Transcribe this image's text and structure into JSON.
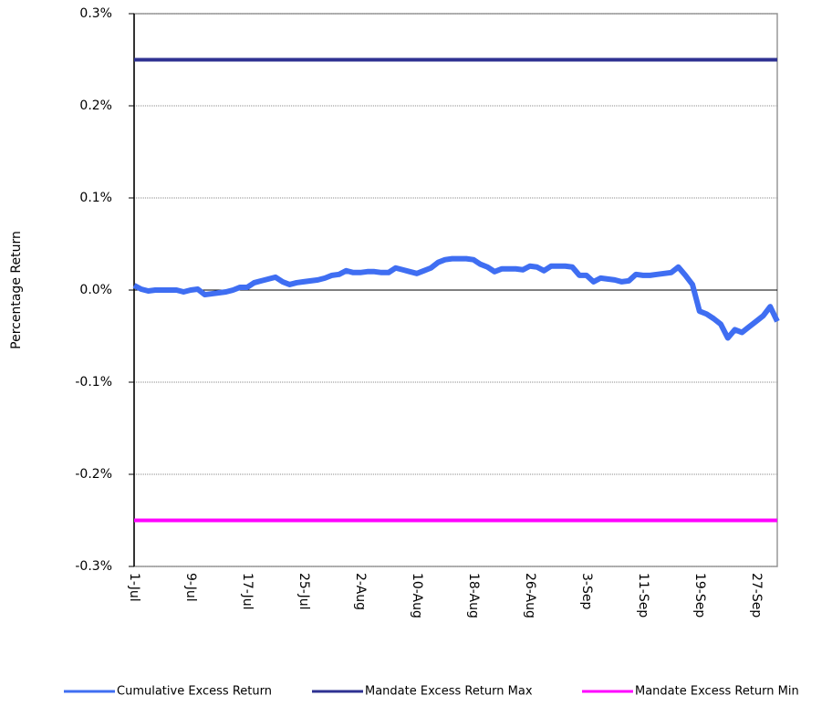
{
  "chart_data": {
    "type": "line",
    "y_label": "Percentage Return",
    "categories": [
      "1-Jul",
      null,
      null,
      null,
      null,
      null,
      null,
      null,
      "9-Jul",
      null,
      null,
      null,
      null,
      null,
      null,
      null,
      "17-Jul",
      null,
      null,
      null,
      null,
      null,
      null,
      null,
      "25-Jul",
      null,
      null,
      null,
      null,
      null,
      null,
      null,
      "2-Aug",
      null,
      null,
      null,
      null,
      null,
      null,
      null,
      "10-Aug",
      null,
      null,
      null,
      null,
      null,
      null,
      null,
      "18-Aug",
      null,
      null,
      null,
      null,
      null,
      null,
      null,
      "26-Aug",
      null,
      null,
      null,
      null,
      null,
      null,
      null,
      "3-Sep",
      null,
      null,
      null,
      null,
      null,
      null,
      null,
      "11-Sep",
      null,
      null,
      null,
      null,
      null,
      null,
      null,
      "19-Sep",
      null,
      null,
      null,
      null,
      null,
      null,
      null,
      "27-Sep",
      null,
      null,
      null
    ],
    "series": [
      {
        "name": "Cumulative Excess Return",
        "color": "#3f6ef2",
        "values": [
          0.005,
          0.001,
          -0.001,
          0,
          0,
          0,
          0,
          -0.002,
          0,
          0.001,
          -0.005,
          -0.004,
          -0.003,
          -0.002,
          0,
          0.003,
          0.003,
          0.008,
          0.01,
          0.012,
          0.014,
          0.009,
          0.006,
          0.008,
          0.009,
          0.01,
          0.011,
          0.013,
          0.016,
          0.017,
          0.021,
          0.019,
          0.019,
          0.02,
          0.02,
          0.019,
          0.019,
          0.024,
          0.022,
          0.02,
          0.018,
          0.021,
          0.024,
          0.03,
          0.033,
          0.034,
          0.034,
          0.034,
          0.033,
          0.028,
          0.025,
          0.02,
          0.023,
          0.023,
          0.023,
          0.022,
          0.026,
          0.025,
          0.021,
          0.026,
          0.026,
          0.026,
          0.025,
          0.016,
          0.016,
          0.009,
          0.013,
          0.012,
          0.011,
          0.009,
          0.01,
          0.017,
          0.016,
          0.016,
          0.017,
          0.018,
          0.019,
          0.025,
          0.016,
          0.006,
          -0.023,
          -0.026,
          -0.031,
          -0.037,
          -0.052,
          -0.043,
          -0.046,
          -0.04,
          -0.034,
          -0.028,
          -0.018,
          -0.034
        ]
      },
      {
        "name": "Mandate Excess Return Max",
        "color": "#2e3192",
        "values": [
          0.25,
          0.25,
          0.25,
          0.25,
          0.25,
          0.25,
          0.25,
          0.25,
          0.25,
          0.25,
          0.25,
          0.25,
          0.25,
          0.25,
          0.25,
          0.25,
          0.25,
          0.25,
          0.25,
          0.25,
          0.25,
          0.25,
          0.25,
          0.25,
          0.25,
          0.25,
          0.25,
          0.25,
          0.25,
          0.25,
          0.25,
          0.25,
          0.25,
          0.25,
          0.25,
          0.25,
          0.25,
          0.25,
          0.25,
          0.25,
          0.25,
          0.25,
          0.25,
          0.25,
          0.25,
          0.25,
          0.25,
          0.25,
          0.25,
          0.25,
          0.25,
          0.25,
          0.25,
          0.25,
          0.25,
          0.25,
          0.25,
          0.25,
          0.25,
          0.25,
          0.25,
          0.25,
          0.25,
          0.25,
          0.25,
          0.25,
          0.25,
          0.25,
          0.25,
          0.25,
          0.25,
          0.25,
          0.25,
          0.25,
          0.25,
          0.25,
          0.25,
          0.25,
          0.25,
          0.25,
          0.25,
          0.25,
          0.25,
          0.25,
          0.25,
          0.25,
          0.25,
          0.25,
          0.25,
          0.25,
          0.25,
          0.25
        ]
      },
      {
        "name": "Mandate Excess Return Min",
        "color": "#ff00ff",
        "values": [
          -0.25,
          -0.25,
          -0.25,
          -0.25,
          -0.25,
          -0.25,
          -0.25,
          -0.25,
          -0.25,
          -0.25,
          -0.25,
          -0.25,
          -0.25,
          -0.25,
          -0.25,
          -0.25,
          -0.25,
          -0.25,
          -0.25,
          -0.25,
          -0.25,
          -0.25,
          -0.25,
          -0.25,
          -0.25,
          -0.25,
          -0.25,
          -0.25,
          -0.25,
          -0.25,
          -0.25,
          -0.25,
          -0.25,
          -0.25,
          -0.25,
          -0.25,
          -0.25,
          -0.25,
          -0.25,
          -0.25,
          -0.25,
          -0.25,
          -0.25,
          -0.25,
          -0.25,
          -0.25,
          -0.25,
          -0.25,
          -0.25,
          -0.25,
          -0.25,
          -0.25,
          -0.25,
          -0.25,
          -0.25,
          -0.25,
          -0.25,
          -0.25,
          -0.25,
          -0.25,
          -0.25,
          -0.25,
          -0.25,
          -0.25,
          -0.25,
          -0.25,
          -0.25,
          -0.25,
          -0.25,
          -0.25,
          -0.25,
          -0.25,
          -0.25,
          -0.25,
          -0.25,
          -0.25,
          -0.25,
          -0.25,
          -0.25,
          -0.25,
          -0.25,
          -0.25,
          -0.25,
          -0.25,
          -0.25,
          -0.25,
          -0.25,
          -0.25,
          -0.25,
          -0.25,
          -0.25,
          -0.25
        ]
      }
    ],
    "ylim": [
      -0.3,
      0.3
    ],
    "yticks": [
      {
        "value": -0.3,
        "label": "-0.3%"
      },
      {
        "value": -0.2,
        "label": "-0.2%"
      },
      {
        "value": -0.1,
        "label": "-0.1%"
      },
      {
        "value": 0,
        "label": "0.0%"
      },
      {
        "value": 0.1,
        "label": "0.1%"
      },
      {
        "value": 0.2,
        "label": "0.2%"
      },
      {
        "value": 0.3,
        "label": "0.3%"
      }
    ],
    "grid": true,
    "legend": "bottom"
  }
}
